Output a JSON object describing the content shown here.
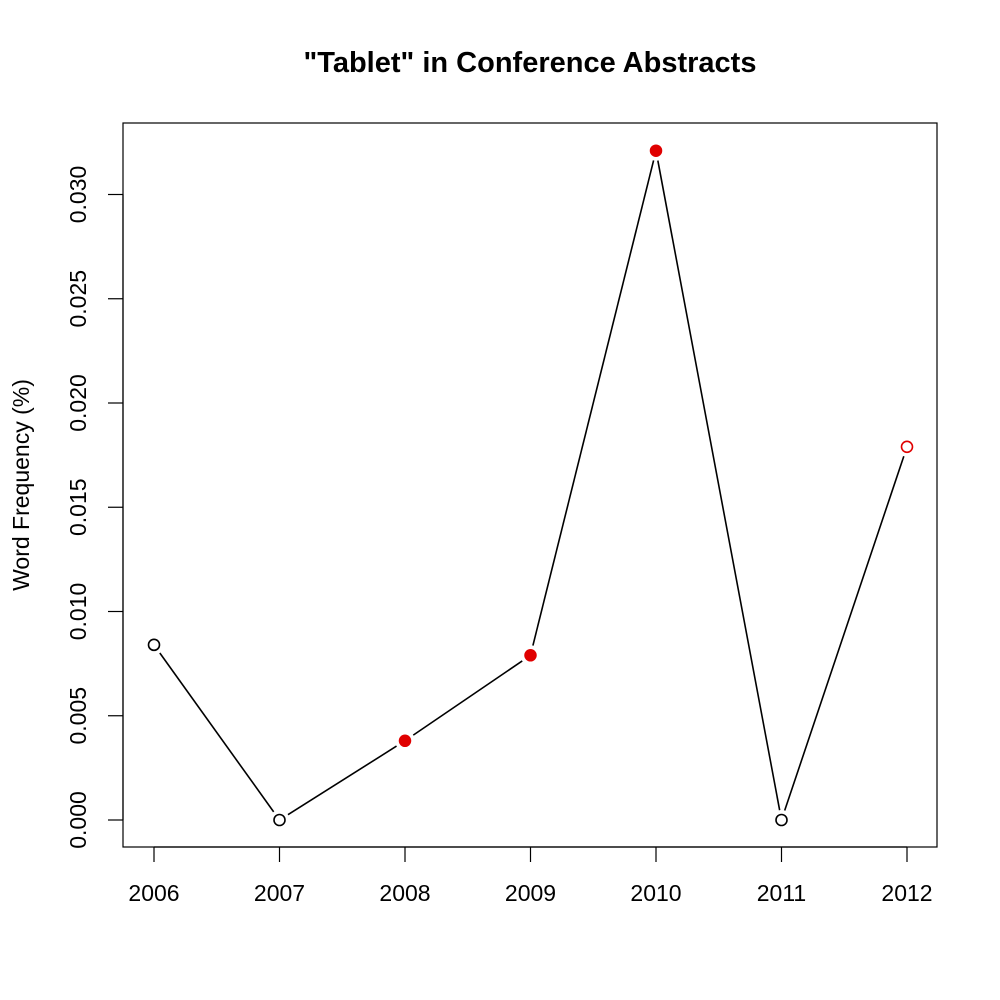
{
  "chart_data": {
    "type": "line",
    "title": "\"Tablet\" in Conference Abstracts",
    "xlabel": "",
    "ylabel": "Word Frequency (%)",
    "x": [
      "2006",
      "2007",
      "2008",
      "2009",
      "2010",
      "2011",
      "2012"
    ],
    "series": [
      {
        "values": [
          0.0084,
          0.0,
          0.0038,
          0.0079,
          0.0321,
          0.0,
          0.0179
        ],
        "point_styles": [
          "open-black",
          "open-black",
          "filled-red",
          "filled-red",
          "filled-red",
          "open-black",
          "open-red"
        ]
      }
    ],
    "ylim": [
      0.0,
      0.03
    ],
    "y_ticks": [
      "0.000",
      "0.005",
      "0.010",
      "0.015",
      "0.020",
      "0.025",
      "0.030"
    ],
    "grid": false,
    "legend": "none",
    "colors": {
      "line": "#000000",
      "highlight": "#e00000",
      "open_marker": "#000000"
    }
  }
}
